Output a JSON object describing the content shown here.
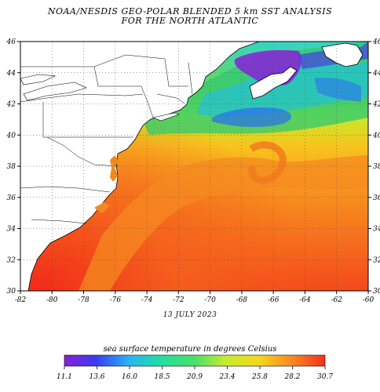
{
  "title_line1": "NOAA/NESDIS GEO-POLAR BLENDED 5 km SST ANALYSIS",
  "title_line2": "FOR THE NORTH ATLANTIC",
  "date": "13 JULY 2023",
  "map": {
    "lon_labels": [
      "-82",
      "-80",
      "-78",
      "-76",
      "-74",
      "-72",
      "-70",
      "-68",
      "-66",
      "-64",
      "-62",
      "-60"
    ],
    "lat_labels": [
      "30",
      "32",
      "34",
      "36",
      "38",
      "40",
      "42",
      "44",
      "46"
    ],
    "grid": true
  },
  "colorbar": {
    "title": "sea surface temperature in degrees Celsius",
    "labels": [
      "11.1",
      "13.6",
      "16.0",
      "18.5",
      "20.9",
      "23.4",
      "25.8",
      "28.2",
      "30.7"
    ],
    "colors": [
      "#8a1fd8",
      "#3a3cf0",
      "#27b6f2",
      "#20e0a0",
      "#4ae06a",
      "#c8ec2e",
      "#f6d61e",
      "#f78a22",
      "#f2301e"
    ]
  }
}
